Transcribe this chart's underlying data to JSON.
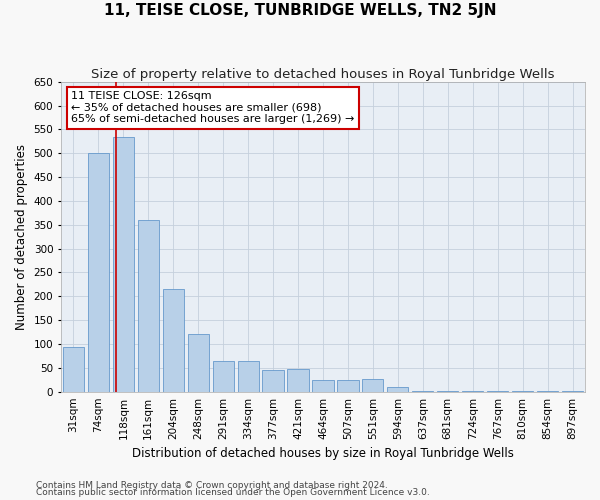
{
  "title": "11, TEISE CLOSE, TUNBRIDGE WELLS, TN2 5JN",
  "subtitle": "Size of property relative to detached houses in Royal Tunbridge Wells",
  "xlabel": "Distribution of detached houses by size in Royal Tunbridge Wells",
  "ylabel": "Number of detached properties",
  "footnote1": "Contains HM Land Registry data © Crown copyright and database right 2024.",
  "footnote2": "Contains public sector information licensed under the Open Government Licence v3.0.",
  "bar_labels": [
    "31sqm",
    "74sqm",
    "118sqm",
    "161sqm",
    "204sqm",
    "248sqm",
    "291sqm",
    "334sqm",
    "377sqm",
    "421sqm",
    "464sqm",
    "507sqm",
    "551sqm",
    "594sqm",
    "637sqm",
    "681sqm",
    "724sqm",
    "767sqm",
    "810sqm",
    "854sqm",
    "897sqm"
  ],
  "bar_values": [
    93,
    500,
    535,
    360,
    215,
    120,
    65,
    65,
    45,
    47,
    25,
    25,
    27,
    10,
    2,
    2,
    2,
    2,
    2,
    2,
    2
  ],
  "bar_color": "#b8d0e8",
  "bar_edgecolor": "#6699cc",
  "background_color": "#e8eef5",
  "grid_color": "#c5d0dc",
  "annotation_text": "11 TEISE CLOSE: 126sqm\n← 35% of detached houses are smaller (698)\n65% of semi-detached houses are larger (1,269) →",
  "annotation_box_facecolor": "#ffffff",
  "annotation_box_edgecolor": "#cc0000",
  "red_line_x": 1.7,
  "ylim": [
    0,
    650
  ],
  "yticks": [
    0,
    50,
    100,
    150,
    200,
    250,
    300,
    350,
    400,
    450,
    500,
    550,
    600,
    650
  ],
  "title_fontsize": 11,
  "subtitle_fontsize": 9.5,
  "xlabel_fontsize": 8.5,
  "ylabel_fontsize": 8.5,
  "tick_fontsize": 7.5,
  "annotation_fontsize": 8,
  "footnote_fontsize": 6.5
}
